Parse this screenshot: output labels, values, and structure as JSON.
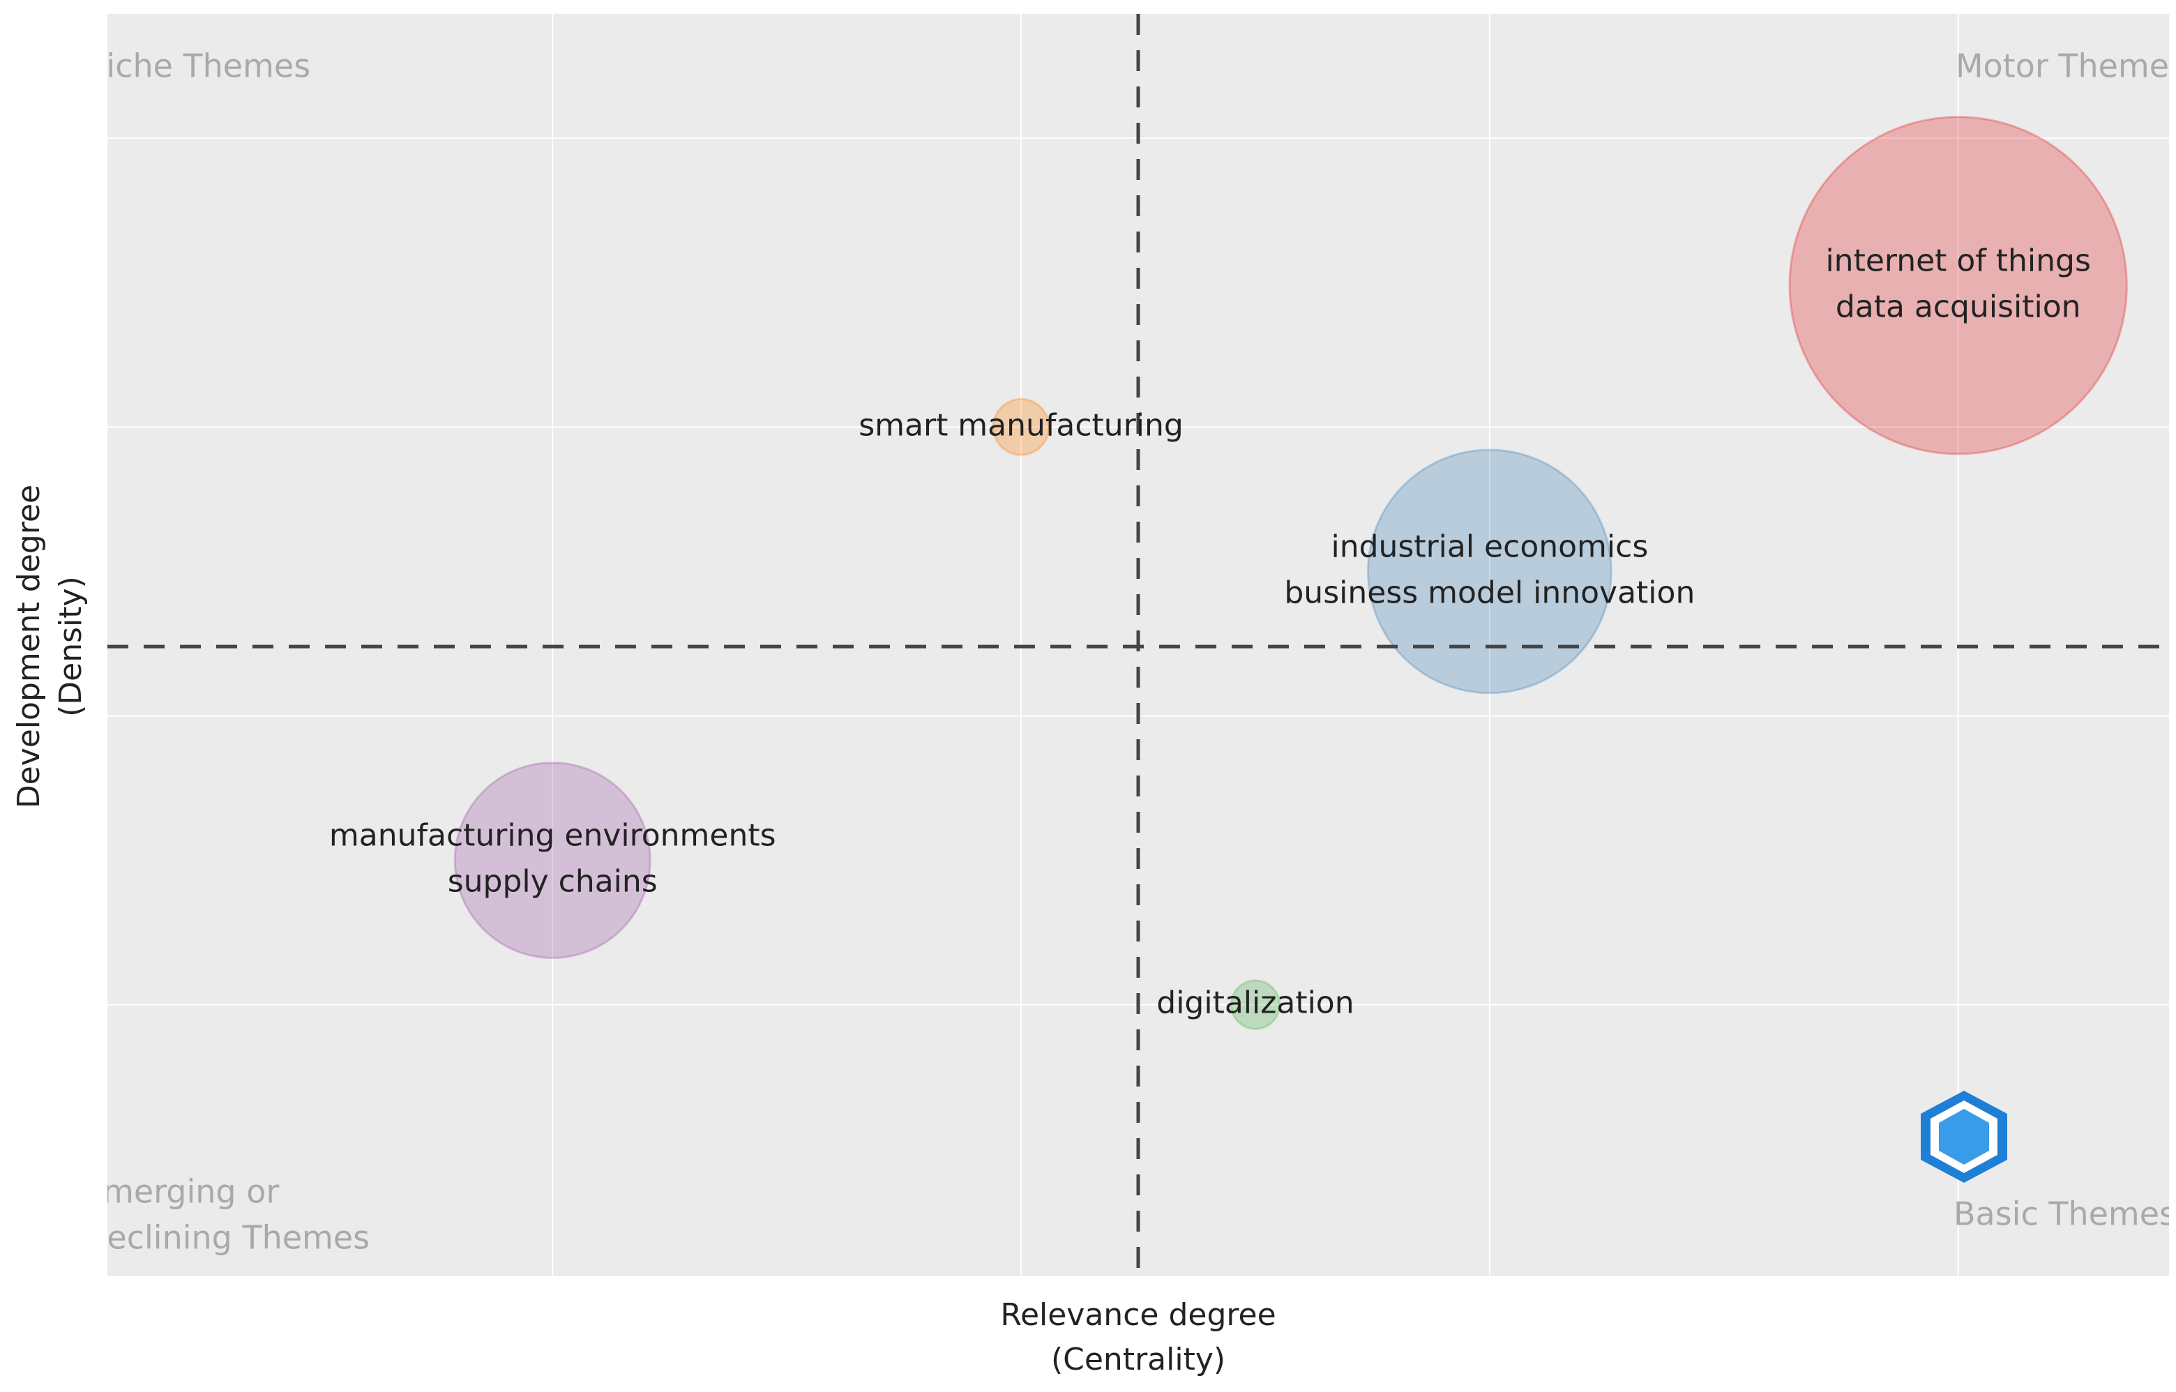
{
  "chart_data": {
    "type": "bubble",
    "x_title": [
      "Relevance degree",
      "(Centrality)"
    ],
    "y_title": [
      "Development degree",
      "(Density)"
    ],
    "quadrant_labels": {
      "top_left": [
        "Niche Themes"
      ],
      "top_right": [
        "Motor Themes"
      ],
      "bottom_left": [
        "Emerging or",
        "Declining Themes"
      ],
      "bottom_right": [
        "Basic Themes"
      ]
    },
    "x": [
      4.0,
      3.0,
      2.0,
      1.0,
      2.5
    ],
    "values": [
      3.49,
      2.5,
      3.0,
      1.5,
      1.0
    ],
    "sizes": [
      146,
      76,
      4,
      49,
      3
    ],
    "labels": [
      [
        "internet of things",
        "data acquisition"
      ],
      [
        "industrial economics",
        "business model innovation"
      ],
      [
        "smart manufacturing"
      ],
      [
        "manufacturing environments",
        "supply chains"
      ],
      [
        "digitalization"
      ]
    ],
    "colors": [
      "#e41a1c",
      "#377eb8",
      "#ff7f00",
      "#984ea3",
      "#4daf4a"
    ],
    "xlim": [
      0.05,
      4.45
    ],
    "ylim": [
      0.06,
      4.43
    ],
    "xticks": [
      1,
      2,
      3,
      4
    ],
    "yticks": [
      1,
      2,
      3,
      4
    ],
    "tick_labels": false,
    "grid": true,
    "vline": 2.25,
    "hline": 2.24
  }
}
